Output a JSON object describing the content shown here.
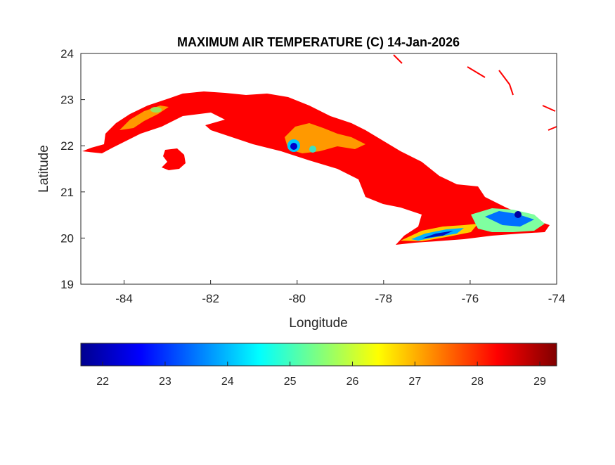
{
  "chart_data": {
    "type": "heatmap",
    "title": "MAXIMUM AIR TEMPERATURE (C) 14-Jan-2026",
    "xlabel": "Longitude",
    "ylabel": "Latitude",
    "xlim": [
      -85,
      -74
    ],
    "ylim": [
      19,
      24
    ],
    "xticks": [
      -84,
      -82,
      -80,
      -78,
      -76,
      -74
    ],
    "yticks": [
      19,
      20,
      21,
      22,
      23,
      24
    ],
    "grid": false,
    "colormap": "jet",
    "colorbar": {
      "location": "bottom",
      "range": [
        21.65,
        29.27
      ],
      "ticks": [
        22,
        23,
        24,
        25,
        26,
        27,
        28,
        29
      ]
    },
    "description_values": {
      "dominant_value": 28.3,
      "mountain_minimum": 22
    }
  },
  "colors": {
    "land_dominant": "#ff0000",
    "warm_orange": "#ff9900",
    "axis": "#262626"
  }
}
